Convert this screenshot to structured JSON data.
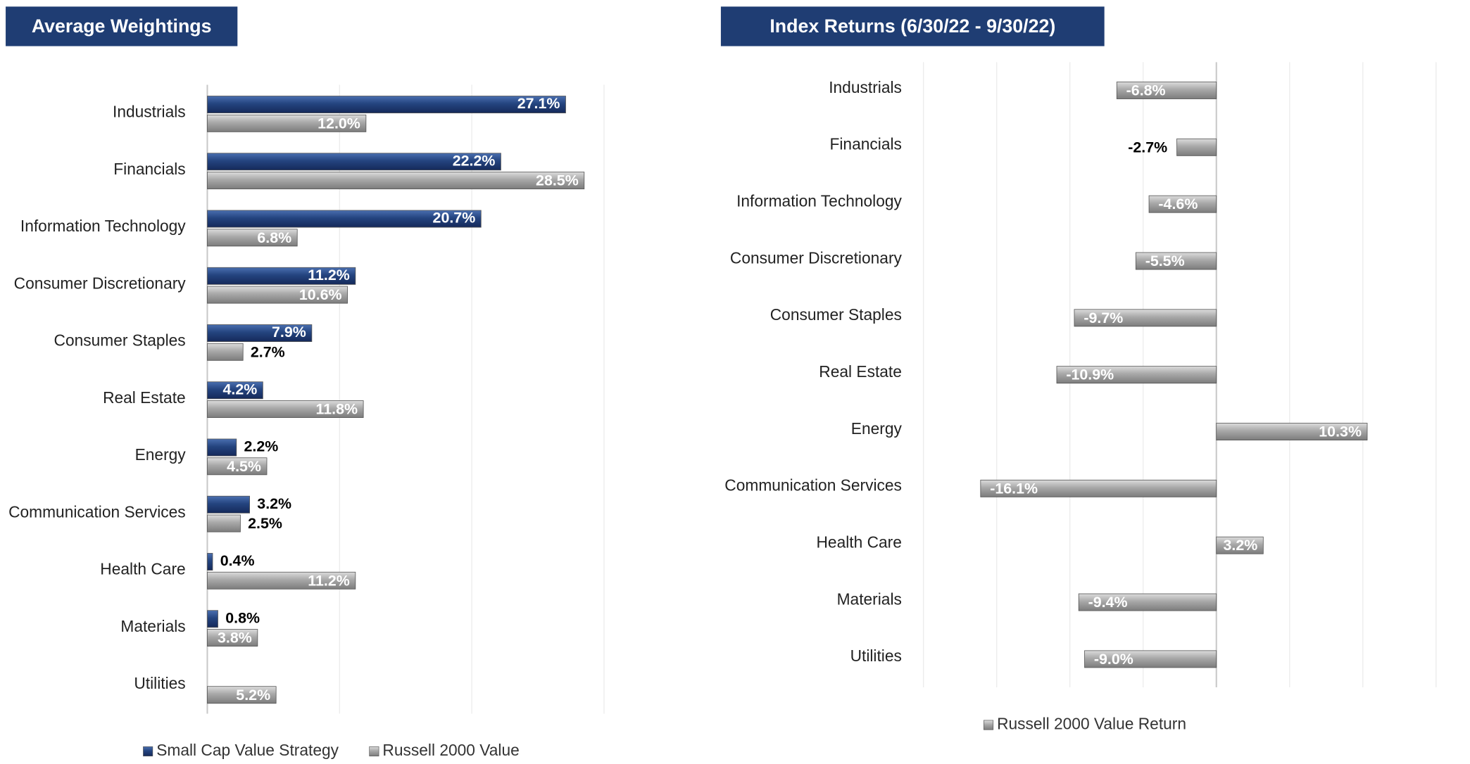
{
  "chart_data": [
    {
      "type": "bar",
      "orientation": "horizontal",
      "title": "Average Weightings",
      "categories": [
        "Industrials",
        "Financials",
        "Information Technology",
        "Consumer Discretionary",
        "Consumer Staples",
        "Real Estate",
        "Energy",
        "Communication Services",
        "Health Care",
        "Materials",
        "Utilities"
      ],
      "series": [
        {
          "name": "Small Cap Value Strategy",
          "color": "#1f3d73",
          "values": [
            27.1,
            22.2,
            20.7,
            11.2,
            7.9,
            4.2,
            2.2,
            3.2,
            0.4,
            0.8,
            null
          ],
          "value_labels": [
            "27.1%",
            "22.2%",
            "20.7%",
            "11.2%",
            "7.9%",
            "4.2%",
            "2.2%",
            "3.2%",
            "0.4%",
            "0.8%",
            null
          ]
        },
        {
          "name": "Russell 2000 Value",
          "color": "#a6a6a6",
          "values": [
            12.0,
            28.5,
            6.8,
            10.6,
            2.7,
            11.8,
            4.5,
            2.5,
            11.2,
            3.8,
            5.2
          ],
          "value_labels": [
            "12.0%",
            "28.5%",
            "6.8%",
            "10.6%",
            "2.7%",
            "11.8%",
            "4.5%",
            "2.5%",
            "11.2%",
            "3.8%",
            "5.2%"
          ]
        }
      ],
      "xlim": [
        0,
        30
      ],
      "xticks": [
        0,
        10,
        20,
        30
      ],
      "grid": true,
      "legend": "bottom"
    },
    {
      "type": "bar",
      "orientation": "horizontal",
      "title": "Index Returns (6/30/22 - 9/30/22)",
      "categories": [
        "Industrials",
        "Financials",
        "Information Technology",
        "Consumer Discretionary",
        "Consumer Staples",
        "Real Estate",
        "Energy",
        "Communication Services",
        "Health Care",
        "Materials",
        "Utilities"
      ],
      "series": [
        {
          "name": "Russell 2000 Value Return",
          "color": "#a6a6a6",
          "values": [
            -6.8,
            -2.7,
            -4.6,
            -5.5,
            -9.7,
            -10.9,
            10.3,
            -16.1,
            3.2,
            -9.4,
            -9.0
          ],
          "value_labels": [
            "-6.8%",
            "-2.7%",
            "-4.6%",
            "-5.5%",
            "-9.7%",
            "-10.9%",
            "10.3%",
            "-16.1%",
            "3.2%",
            "-9.4%",
            "-9.0%"
          ]
        }
      ],
      "xlim": [
        -20,
        15
      ],
      "xticks": [
        -20,
        -15,
        -10,
        -5,
        0,
        5,
        10,
        15
      ],
      "grid": true,
      "legend": "bottom"
    }
  ]
}
